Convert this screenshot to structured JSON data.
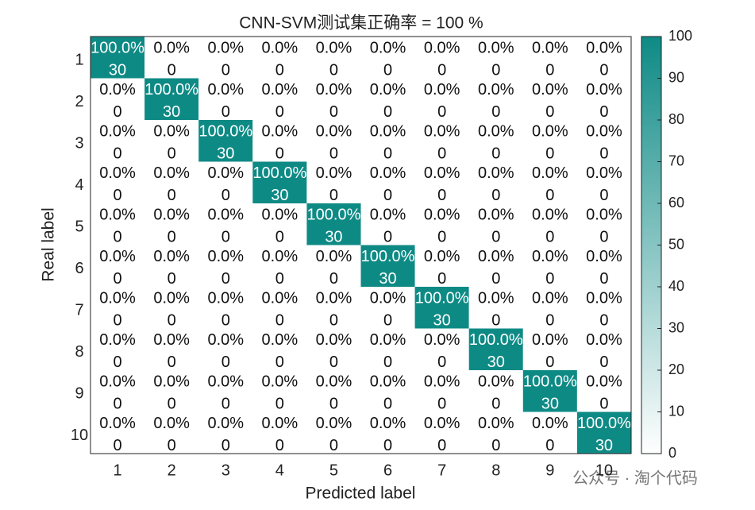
{
  "chart_data": {
    "type": "heatmap",
    "title": "CNN-SVM测试集正确率 = 100 %",
    "xlabel": "Predicted label",
    "ylabel": "Real label",
    "x_categories": [
      "1",
      "2",
      "3",
      "4",
      "5",
      "6",
      "7",
      "8",
      "9",
      "10"
    ],
    "y_categories": [
      "1",
      "2",
      "3",
      "4",
      "5",
      "6",
      "7",
      "8",
      "9",
      "10"
    ],
    "values": [
      [
        30,
        0,
        0,
        0,
        0,
        0,
        0,
        0,
        0,
        0
      ],
      [
        0,
        30,
        0,
        0,
        0,
        0,
        0,
        0,
        0,
        0
      ],
      [
        0,
        0,
        30,
        0,
        0,
        0,
        0,
        0,
        0,
        0
      ],
      [
        0,
        0,
        0,
        30,
        0,
        0,
        0,
        0,
        0,
        0
      ],
      [
        0,
        0,
        0,
        0,
        30,
        0,
        0,
        0,
        0,
        0
      ],
      [
        0,
        0,
        0,
        0,
        0,
        30,
        0,
        0,
        0,
        0
      ],
      [
        0,
        0,
        0,
        0,
        0,
        0,
        30,
        0,
        0,
        0
      ],
      [
        0,
        0,
        0,
        0,
        0,
        0,
        0,
        30,
        0,
        0
      ],
      [
        0,
        0,
        0,
        0,
        0,
        0,
        0,
        0,
        30,
        0
      ],
      [
        0,
        0,
        0,
        0,
        0,
        0,
        0,
        0,
        0,
        30
      ]
    ],
    "percentages": [
      [
        100,
        0,
        0,
        0,
        0,
        0,
        0,
        0,
        0,
        0
      ],
      [
        0,
        100,
        0,
        0,
        0,
        0,
        0,
        0,
        0,
        0
      ],
      [
        0,
        0,
        100,
        0,
        0,
        0,
        0,
        0,
        0,
        0
      ],
      [
        0,
        0,
        0,
        100,
        0,
        0,
        0,
        0,
        0,
        0
      ],
      [
        0,
        0,
        0,
        0,
        100,
        0,
        0,
        0,
        0,
        0
      ],
      [
        0,
        0,
        0,
        0,
        0,
        100,
        0,
        0,
        0,
        0
      ],
      [
        0,
        0,
        0,
        0,
        0,
        0,
        100,
        0,
        0,
        0
      ],
      [
        0,
        0,
        0,
        0,
        0,
        0,
        0,
        100,
        0,
        0
      ],
      [
        0,
        0,
        0,
        0,
        0,
        0,
        0,
        0,
        100,
        0
      ],
      [
        0,
        0,
        0,
        0,
        0,
        0,
        0,
        0,
        0,
        100
      ]
    ],
    "percentage_labels": [
      [
        "100.0%",
        "0.0%",
        "0.0%",
        "0.0%",
        "0.0%",
        "0.0%",
        "0.0%",
        "0.0%",
        "0.0%",
        "0.0%"
      ],
      [
        "0.0%",
        "100.0%",
        "0.0%",
        "0.0%",
        "0.0%",
        "0.0%",
        "0.0%",
        "0.0%",
        "0.0%",
        "0.0%"
      ],
      [
        "0.0%",
        "0.0%",
        "100.0%",
        "0.0%",
        "0.0%",
        "0.0%",
        "0.0%",
        "0.0%",
        "0.0%",
        "0.0%"
      ],
      [
        "0.0%",
        "0.0%",
        "0.0%",
        "100.0%",
        "0.0%",
        "0.0%",
        "0.0%",
        "0.0%",
        "0.0%",
        "0.0%"
      ],
      [
        "0.0%",
        "0.0%",
        "0.0%",
        "0.0%",
        "100.0%",
        "0.0%",
        "0.0%",
        "0.0%",
        "0.0%",
        "0.0%"
      ],
      [
        "0.0%",
        "0.0%",
        "0.0%",
        "0.0%",
        "0.0%",
        "100.0%",
        "0.0%",
        "0.0%",
        "0.0%",
        "0.0%"
      ],
      [
        "0.0%",
        "0.0%",
        "0.0%",
        "0.0%",
        "0.0%",
        "0.0%",
        "100.0%",
        "0.0%",
        "0.0%",
        "0.0%"
      ],
      [
        "0.0%",
        "0.0%",
        "0.0%",
        "0.0%",
        "0.0%",
        "0.0%",
        "0.0%",
        "100.0%",
        "0.0%",
        "0.0%"
      ],
      [
        "0.0%",
        "0.0%",
        "0.0%",
        "0.0%",
        "0.0%",
        "0.0%",
        "0.0%",
        "0.0%",
        "100.0%",
        "0.0%"
      ],
      [
        "0.0%",
        "0.0%",
        "0.0%",
        "0.0%",
        "0.0%",
        "0.0%",
        "0.0%",
        "0.0%",
        "0.0%",
        "100.0%"
      ]
    ],
    "colormap": [
      "#ffffff",
      "#0e8a85"
    ],
    "clim": [
      0,
      100
    ],
    "colorbar_ticks": [
      0,
      10,
      20,
      30,
      40,
      50,
      60,
      70,
      80,
      90,
      100
    ],
    "watermark": "公众号 · 淘个代码"
  }
}
